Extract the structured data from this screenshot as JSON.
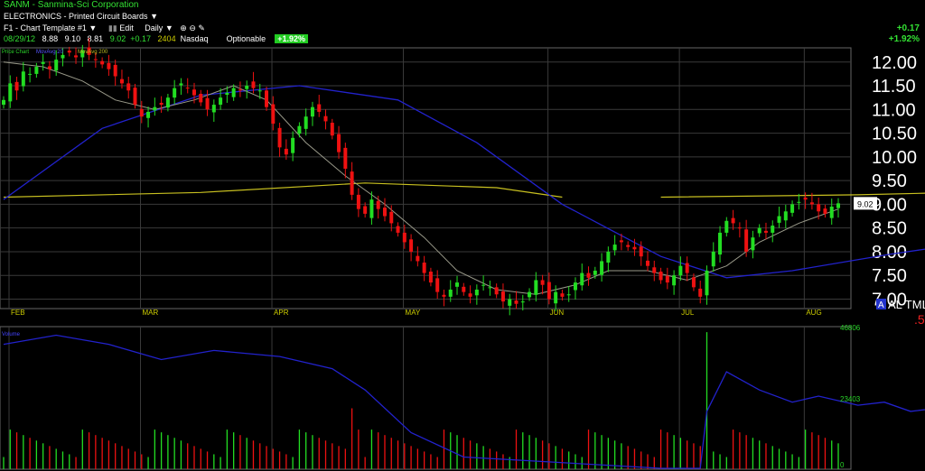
{
  "header": {
    "symbol_line": "SANM - Sanmina-Sci Corporation",
    "industry": "ELECTRONICS - Printed Circuit Boards",
    "industry_caret": "▼",
    "template": "F1 - Chart Template #1",
    "template_caret": "▼",
    "edit_label": "Edit",
    "period": "Daily",
    "period_caret": "▼",
    "zoom_in_icon": "magnify-plus",
    "zoom_out_icon": "magnify-minus",
    "draw_icon": "pencil",
    "date": "08/29/12",
    "open": "8.88",
    "high": "9.10",
    "low": "8.81",
    "close": "9.02",
    "change": "+0.17",
    "volume": "2404",
    "exchange": "Nasdaq",
    "optionable": "Optionable",
    "pct_badge": "+1.92%",
    "right_change": "+0.17",
    "right_pct": "+1.92%"
  },
  "legend": {
    "price_chart": "Price Chart",
    "ma20": "MovAvg 20",
    "ma200": "MovAvg 200",
    "volume": "Volume"
  },
  "alerts": {
    "text": "AL TML",
    "badge": "A",
    "sub": ".5"
  },
  "colors": {
    "up": "#22dd22",
    "down": "#ee1111",
    "ma20": "#9a9a8a",
    "ma50": "#2222cc",
    "ma200": "#c8c020",
    "grid": "#3a3a3a",
    "label": "#cccc00"
  },
  "chart_data": [
    {
      "type": "candlestick",
      "ylim": [
        6.8,
        12.3
      ],
      "yticks": [
        "12.00",
        "11.50",
        "11.00",
        "10.50",
        "10.00",
        "9.50",
        "9.00",
        "8.50",
        "8.00",
        "7.50",
        "7.00"
      ],
      "months": [
        "FEB",
        "MAR",
        "APR",
        "MAY",
        "JUN",
        "JUL",
        "AUG"
      ],
      "last_price_label": "9.02",
      "close": [
        11.2,
        11.55,
        11.4,
        11.8,
        11.75,
        11.9,
        12.0,
        11.85,
        12.05,
        12.15,
        12.2,
        12.1,
        12.25,
        12.15,
        12.05,
        11.95,
        11.85,
        11.7,
        11.55,
        11.4,
        11.1,
        10.85,
        10.95,
        11.05,
        11.1,
        11.25,
        11.45,
        11.55,
        11.45,
        11.3,
        11.15,
        11.0,
        11.1,
        11.25,
        11.35,
        11.45,
        11.4,
        11.5,
        11.45,
        11.4,
        11.05,
        10.7,
        10.2,
        10.05,
        10.4,
        10.65,
        10.85,
        11.05,
        10.95,
        10.75,
        10.45,
        10.1,
        9.75,
        9.2,
        8.9,
        8.8,
        9.1,
        8.9,
        8.75,
        8.6,
        8.4,
        8.2,
        8.0,
        7.8,
        7.55,
        7.35,
        7.15,
        7.05,
        7.2,
        7.35,
        7.15,
        7.05,
        7.2,
        7.3,
        7.25,
        7.1,
        6.95,
        7.0,
        6.9,
        6.95,
        7.15,
        7.4,
        7.3,
        7.0,
        7.15,
        7.05,
        7.1,
        7.35,
        7.55,
        7.45,
        7.6,
        7.8,
        8.0,
        8.15,
        8.2,
        8.1,
        8.05,
        7.9,
        7.7,
        7.55,
        7.4,
        7.35,
        7.5,
        7.7,
        7.55,
        7.25,
        7.05,
        7.6,
        8.0,
        8.4,
        8.65,
        8.6,
        8.5,
        8.0,
        8.3,
        8.5,
        8.4,
        8.55,
        8.75,
        8.85,
        9.0,
        9.05,
        9.1,
        9.0,
        8.85,
        8.8,
        8.95,
        9.02
      ],
      "ma20_start": 11.1,
      "ma20_anchor": [
        12.0,
        11.9,
        11.6,
        11.2,
        11.0,
        11.2,
        11.5,
        11.2,
        10.3,
        9.6,
        9.0,
        8.3,
        7.6,
        7.2,
        7.1,
        7.3,
        7.6,
        7.6,
        7.4,
        7.7,
        8.2,
        8.6,
        8.9
      ],
      "ma50": [
        [
          0,
          9.1
        ],
        [
          15,
          10.6
        ],
        [
          30,
          11.3
        ],
        [
          45,
          11.5
        ],
        [
          60,
          11.2
        ],
        [
          72,
          10.3
        ],
        [
          85,
          9.0
        ],
        [
          100,
          7.9
        ],
        [
          110,
          7.45
        ],
        [
          120,
          7.6
        ],
        [
          135,
          7.95
        ],
        [
          145,
          8.15
        ]
      ],
      "ma200": [
        [
          0,
          9.15
        ],
        [
          30,
          9.25
        ],
        [
          55,
          9.45
        ],
        [
          75,
          9.35
        ],
        [
          85,
          9.15
        ],
        [
          100,
          9.15
        ],
        [
          130,
          9.2
        ],
        [
          145,
          9.25
        ]
      ]
    },
    {
      "type": "volume",
      "labels": [
        "46806",
        "23403",
        "0"
      ],
      "ylim": [
        0,
        46806
      ]
    }
  ]
}
